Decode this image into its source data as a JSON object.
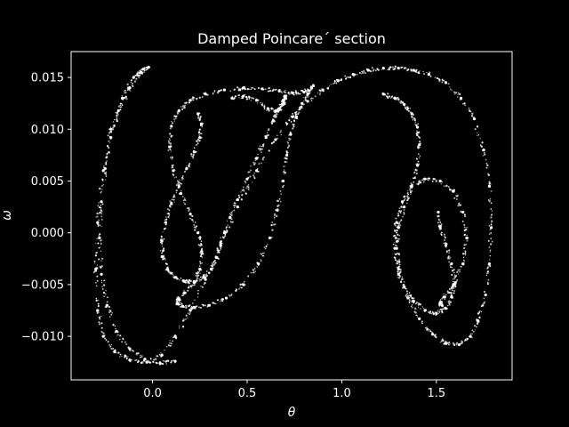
{
  "chart_data": {
    "type": "scatter",
    "title": "Damped Poincare´ section",
    "xlabel": "θ",
    "ylabel": "ω",
    "xlim": [
      -0.43,
      1.9
    ],
    "ylim": [
      -0.0142,
      0.0175
    ],
    "xticks": [
      0.0,
      0.5,
      1.0,
      1.5
    ],
    "xtick_labels": [
      "0.0",
      "0.5",
      "1.0",
      "1.5"
    ],
    "yticks": [
      -0.01,
      -0.005,
      0.0,
      0.005,
      0.01,
      0.015
    ],
    "ytick_labels": [
      "−0.010",
      "−0.005",
      "0.000",
      "0.005",
      "0.010",
      "0.015"
    ],
    "grid": false,
    "background": "#000000",
    "foreground": "#ffffff",
    "marker_color": "#ffffff",
    "series": [
      {
        "description_key": "strange-attractor-band",
        "x": [
          -0.05,
          -0.1,
          -0.16,
          -0.22,
          -0.26,
          -0.29,
          -0.3,
          -0.29,
          -0.26,
          -0.2,
          -0.12,
          -0.03,
          0.05,
          0.12,
          0.2,
          0.28,
          0.36,
          0.45,
          0.55,
          0.65,
          0.74,
          0.82,
          0.9,
          0.98,
          1.06,
          1.14,
          1.22,
          1.3,
          1.38,
          1.46,
          1.55,
          1.63,
          1.7,
          1.75,
          1.78,
          1.79,
          1.78,
          1.76,
          1.72,
          1.68,
          1.62,
          1.55,
          1.48,
          1.41,
          1.35,
          1.3,
          1.28,
          1.29,
          1.32,
          1.37,
          1.44,
          1.52,
          1.59,
          1.64,
          1.66,
          1.64,
          1.59,
          1.54,
          1.52,
          1.53
        ],
        "y": [
          0.0158,
          0.015,
          0.013,
          0.01,
          0.006,
          0.001,
          -0.0035,
          -0.0075,
          -0.01,
          -0.0115,
          -0.0123,
          -0.0125,
          -0.0118,
          -0.01,
          -0.0075,
          -0.0045,
          -0.001,
          0.0025,
          0.006,
          0.009,
          0.0112,
          0.0127,
          0.0138,
          0.0147,
          0.0153,
          0.0157,
          0.0159,
          0.0159,
          0.0157,
          0.0153,
          0.0145,
          0.013,
          0.011,
          0.008,
          0.0045,
          0.0005,
          -0.003,
          -0.006,
          -0.0085,
          -0.01,
          -0.0108,
          -0.0107,
          -0.0098,
          -0.0083,
          -0.0063,
          -0.004,
          -0.0015,
          0.001,
          0.003,
          0.0045,
          0.0052,
          0.005,
          0.004,
          0.002,
          -0.0005,
          -0.003,
          -0.005,
          -0.0062,
          -0.0068,
          -0.007
        ]
      },
      {
        "description_key": "left-inner-fold",
        "x": [
          0.85,
          0.8,
          0.74,
          0.67,
          0.58,
          0.48,
          0.38,
          0.28,
          0.2,
          0.14,
          0.1,
          0.09,
          0.11,
          0.15,
          0.2,
          0.24,
          0.26,
          0.25,
          0.22,
          0.17,
          0.14,
          0.13,
          0.16,
          0.22,
          0.3,
          0.39,
          0.48,
          0.56,
          0.62,
          0.66,
          0.69,
          0.71,
          0.73,
          0.76,
          0.79,
          0.82,
          0.84
        ],
        "y": [
          0.0142,
          0.0136,
          0.0135,
          0.0137,
          0.0139,
          0.014,
          0.0138,
          0.0134,
          0.0128,
          0.0118,
          0.0103,
          0.0083,
          0.006,
          0.0038,
          0.0018,
          0.0,
          -0.0018,
          -0.0035,
          -0.0048,
          -0.0058,
          -0.0064,
          -0.0068,
          -0.0071,
          -0.0072,
          -0.007,
          -0.0063,
          -0.005,
          -0.003,
          -0.0005,
          0.0022,
          0.005,
          0.0075,
          0.0095,
          0.0112,
          0.0125,
          0.0134,
          0.014
        ]
      },
      {
        "description_key": "left-spiral-core",
        "x": [
          0.24,
          0.26,
          0.25,
          0.22,
          0.18,
          0.14,
          0.1,
          0.07,
          0.05,
          0.05,
          0.08,
          0.12,
          0.17,
          0.22,
          0.27,
          0.31,
          0.34,
          0.36,
          0.38,
          0.41,
          0.45,
          0.5,
          0.55,
          0.6,
          0.64,
          0.67,
          0.69,
          0.7,
          0.7,
          0.69,
          0.66,
          0.61,
          0.55,
          0.48,
          0.42
        ],
        "y": [
          0.0115,
          0.0105,
          0.0092,
          0.0078,
          0.0062,
          0.0045,
          0.0028,
          0.001,
          -0.0008,
          -0.0023,
          -0.0035,
          -0.0043,
          -0.0047,
          -0.0047,
          -0.0043,
          -0.0035,
          -0.0024,
          -0.0012,
          0.0,
          0.0015,
          0.0032,
          0.0052,
          0.0072,
          0.0092,
          0.0108,
          0.012,
          0.0128,
          0.0132,
          0.013,
          0.0124,
          0.0118,
          0.012,
          0.0128,
          0.0132,
          0.013
        ]
      },
      {
        "description_key": "right-inner-fold",
        "x": [
          1.22,
          1.28,
          1.33,
          1.37,
          1.4,
          1.41,
          1.4,
          1.37,
          1.33,
          1.3,
          1.29,
          1.3,
          1.33,
          1.38,
          1.44,
          1.5,
          1.55,
          1.58,
          1.6,
          1.58,
          1.55,
          1.52,
          1.51
        ],
        "y": [
          0.0134,
          0.013,
          0.0124,
          0.0115,
          0.0102,
          0.0085,
          0.0065,
          0.0045,
          0.0025,
          0.0005,
          -0.0015,
          -0.0035,
          -0.0052,
          -0.0066,
          -0.0075,
          -0.0078,
          -0.0073,
          -0.0062,
          -0.0048,
          -0.003,
          -0.0012,
          0.0005,
          0.002
        ]
      },
      {
        "description_key": "left-edge-filament",
        "x": [
          -0.02,
          -0.06,
          -0.12,
          -0.18,
          -0.22,
          -0.25,
          -0.27,
          -0.28,
          -0.27,
          -0.24,
          -0.19,
          -0.12,
          -0.04,
          0.04,
          0.12
        ],
        "y": [
          0.016,
          0.0155,
          0.014,
          0.0118,
          0.0092,
          0.0062,
          0.003,
          -0.0005,
          -0.004,
          -0.007,
          -0.0095,
          -0.0112,
          -0.0122,
          -0.0126,
          -0.0124
        ]
      }
    ]
  }
}
